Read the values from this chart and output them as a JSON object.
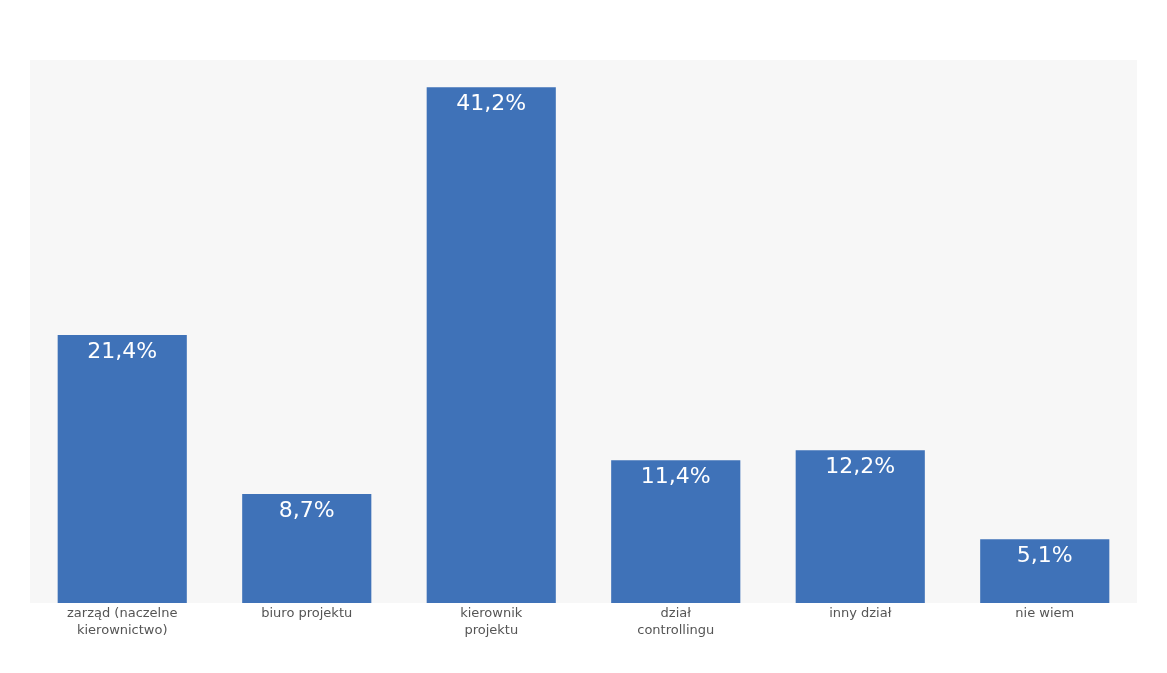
{
  "chart_data": {
    "type": "bar",
    "categories": [
      "zarząd (naczelne kierownictwo)",
      "biuro projektu",
      "kierownik projektu",
      "dział controllingu",
      "inny dział",
      "nie wiem"
    ],
    "values": [
      21.4,
      8.7,
      41.2,
      11.4,
      12.2,
      5.1
    ],
    "value_labels": [
      "21,4%",
      "8,7%",
      "41,2%",
      "11,4%",
      "12,2%",
      "5,1%"
    ],
    "color": "#3f72b8",
    "grid": false,
    "legend": false
  }
}
